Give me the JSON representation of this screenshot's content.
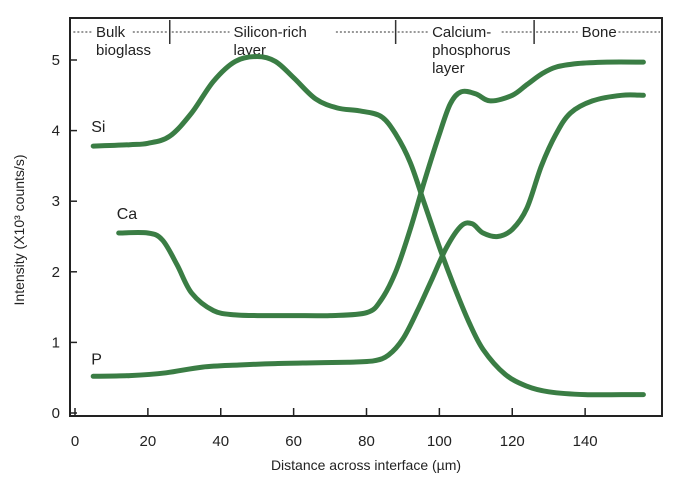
{
  "chart_data": {
    "type": "line",
    "title": "",
    "xlabel": "Distance across interface (µm)",
    "ylabel": "Intensity (X10³ counts/s)",
    "xlim": [
      -1,
      165
    ],
    "ylim": [
      0,
      5.5
    ],
    "xticks": [
      0,
      20,
      40,
      60,
      80,
      100,
      120,
      140
    ],
    "yticks": [
      0,
      1,
      2,
      3,
      4,
      5
    ],
    "grid": false,
    "legend": "none (series labeled inline)",
    "line_color": "#3a7d44",
    "regions": [
      {
        "label": "Bulk bioglass",
        "lines": [
          "Bulk",
          "bioglass"
        ],
        "x_start": -1,
        "x_end": 26
      },
      {
        "label": "Silicon-rich layer",
        "lines": [
          "Silicon-rich",
          "layer"
        ],
        "x_start": 26,
        "x_end": 88
      },
      {
        "label": "Calcium-phosphorus layer",
        "lines": [
          "Calcium-",
          "phosphorus",
          "layer"
        ],
        "x_start": 88,
        "x_end": 126
      },
      {
        "label": "Bone",
        "lines": [
          "Bone"
        ],
        "x_start": 126,
        "x_end": 165
      }
    ],
    "series": [
      {
        "name": "Si",
        "x": [
          5,
          15,
          20,
          26,
          32,
          38,
          44,
          50,
          55,
          60,
          66,
          72,
          78,
          84,
          88,
          92,
          96,
          100,
          104,
          108,
          112,
          118,
          124,
          130,
          140,
          150,
          156
        ],
        "y": [
          3.78,
          3.8,
          3.82,
          3.92,
          4.25,
          4.7,
          4.98,
          5.05,
          4.98,
          4.75,
          4.45,
          4.32,
          4.28,
          4.2,
          3.95,
          3.55,
          2.95,
          2.35,
          1.8,
          1.3,
          0.9,
          0.55,
          0.38,
          0.3,
          0.26,
          0.26,
          0.26
        ]
      },
      {
        "name": "Ca",
        "x": [
          12,
          20,
          24,
          28,
          32,
          38,
          44,
          52,
          60,
          70,
          80,
          84,
          88,
          92,
          96,
          100,
          103,
          106,
          110,
          114,
          120,
          124,
          128,
          132,
          138,
          146,
          156
        ],
        "y": [
          2.55,
          2.55,
          2.45,
          2.1,
          1.7,
          1.45,
          1.39,
          1.38,
          1.38,
          1.38,
          1.42,
          1.6,
          2.0,
          2.6,
          3.3,
          3.95,
          4.38,
          4.55,
          4.52,
          4.42,
          4.5,
          4.65,
          4.8,
          4.9,
          4.95,
          4.97,
          4.97
        ]
      },
      {
        "name": "P",
        "x": [
          5,
          15,
          25,
          35,
          45,
          55,
          65,
          75,
          82,
          86,
          90,
          94,
          98,
          102,
          106,
          109,
          112,
          116,
          120,
          124,
          128,
          132,
          136,
          142,
          150,
          156
        ],
        "y": [
          0.52,
          0.53,
          0.57,
          0.65,
          0.68,
          0.7,
          0.71,
          0.72,
          0.74,
          0.82,
          1.05,
          1.45,
          1.9,
          2.35,
          2.65,
          2.68,
          2.55,
          2.5,
          2.6,
          2.9,
          3.5,
          3.95,
          4.25,
          4.42,
          4.5,
          4.5
        ]
      }
    ]
  }
}
